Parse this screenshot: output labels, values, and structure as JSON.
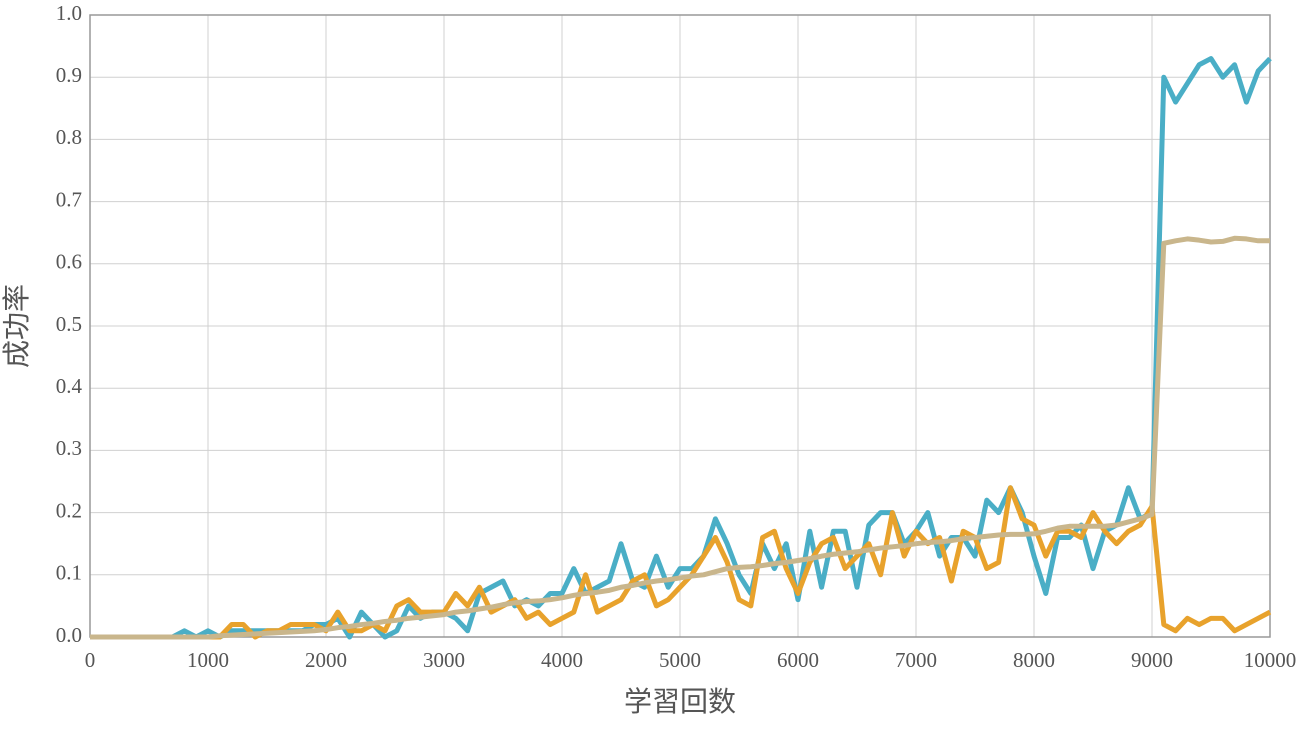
{
  "chart_data": {
    "type": "line",
    "x_label": "学習回数",
    "y_label": "成功率",
    "x": [
      0,
      100,
      200,
      300,
      400,
      500,
      600,
      700,
      800,
      900,
      1000,
      1100,
      1200,
      1300,
      1400,
      1500,
      1600,
      1700,
      1800,
      1900,
      2000,
      2100,
      2200,
      2300,
      2400,
      2500,
      2600,
      2700,
      2800,
      2900,
      3000,
      3100,
      3200,
      3300,
      3400,
      3500,
      3600,
      3700,
      3800,
      3900,
      4000,
      4100,
      4200,
      4300,
      4400,
      4500,
      4600,
      4700,
      4800,
      4900,
      5000,
      5100,
      5200,
      5300,
      5400,
      5500,
      5600,
      5700,
      5800,
      5900,
      6000,
      6100,
      6200,
      6300,
      6400,
      6500,
      6600,
      6700,
      6800,
      6900,
      7000,
      7100,
      7200,
      7300,
      7400,
      7500,
      7600,
      7700,
      7800,
      7900,
      8000,
      8100,
      8200,
      8300,
      8400,
      8500,
      8600,
      8700,
      8800,
      8900,
      9000,
      9100,
      9200,
      9300,
      9400,
      9500,
      9600,
      9700,
      9800,
      9900,
      10000
    ],
    "series": [
      {
        "color": "#4aaec6",
        "values": [
          0,
          0,
          0,
          0,
          0,
          0,
          0,
          0,
          0.01,
          0,
          0.01,
          0,
          0.01,
          0.01,
          0.01,
          0.01,
          0.01,
          0.01,
          0.01,
          0.02,
          0.02,
          0.03,
          0,
          0.04,
          0.02,
          0,
          0.01,
          0.05,
          0.03,
          0.04,
          0.04,
          0.03,
          0.01,
          0.07,
          0.08,
          0.09,
          0.05,
          0.06,
          0.05,
          0.07,
          0.07,
          0.11,
          0.07,
          0.08,
          0.09,
          0.15,
          0.09,
          0.08,
          0.13,
          0.08,
          0.11,
          0.11,
          0.13,
          0.19,
          0.15,
          0.1,
          0.07,
          0.15,
          0.11,
          0.15,
          0.06,
          0.17,
          0.08,
          0.17,
          0.17,
          0.08,
          0.18,
          0.2,
          0.2,
          0.15,
          0.17,
          0.2,
          0.13,
          0.16,
          0.16,
          0.13,
          0.22,
          0.2,
          0.24,
          0.2,
          0.13,
          0.07,
          0.16,
          0.16,
          0.18,
          0.11,
          0.17,
          0.18,
          0.24,
          0.19,
          0.2,
          0.9,
          0.86,
          0.89,
          0.92,
          0.93,
          0.9,
          0.92,
          0.86,
          0.91,
          0.93
        ]
      },
      {
        "color": "#e8a22c",
        "values": [
          0,
          0,
          0,
          0,
          0,
          0,
          0,
          0,
          0,
          0,
          0,
          0,
          0.02,
          0.02,
          0,
          0.01,
          0.01,
          0.02,
          0.02,
          0.02,
          0.01,
          0.04,
          0.01,
          0.01,
          0.02,
          0.01,
          0.05,
          0.06,
          0.04,
          0.04,
          0.04,
          0.07,
          0.05,
          0.08,
          0.04,
          0.05,
          0.06,
          0.03,
          0.04,
          0.02,
          0.03,
          0.04,
          0.1,
          0.04,
          0.05,
          0.06,
          0.09,
          0.1,
          0.05,
          0.06,
          0.08,
          0.1,
          0.13,
          0.16,
          0.12,
          0.06,
          0.05,
          0.16,
          0.17,
          0.11,
          0.07,
          0.12,
          0.15,
          0.16,
          0.11,
          0.13,
          0.15,
          0.1,
          0.2,
          0.13,
          0.17,
          0.15,
          0.16,
          0.09,
          0.17,
          0.16,
          0.11,
          0.12,
          0.24,
          0.19,
          0.18,
          0.13,
          0.17,
          0.17,
          0.16,
          0.2,
          0.17,
          0.15,
          0.17,
          0.18,
          0.21,
          0.02,
          0.01,
          0.03,
          0.02,
          0.03,
          0.03,
          0.01,
          0.02,
          0.03,
          0.04
        ]
      },
      {
        "color": "#c9b68c",
        "values": [
          0,
          0,
          0,
          0,
          0,
          0,
          0,
          0,
          0,
          0,
          0,
          0.002,
          0.003,
          0.004,
          0.005,
          0.006,
          0.007,
          0.008,
          0.009,
          0.01,
          0.012,
          0.015,
          0.017,
          0.02,
          0.022,
          0.025,
          0.027,
          0.03,
          0.032,
          0.034,
          0.036,
          0.04,
          0.042,
          0.045,
          0.048,
          0.052,
          0.055,
          0.057,
          0.058,
          0.06,
          0.063,
          0.067,
          0.07,
          0.072,
          0.075,
          0.08,
          0.083,
          0.087,
          0.09,
          0.092,
          0.095,
          0.098,
          0.1,
          0.105,
          0.11,
          0.112,
          0.113,
          0.115,
          0.118,
          0.12,
          0.123,
          0.126,
          0.13,
          0.133,
          0.135,
          0.137,
          0.14,
          0.143,
          0.145,
          0.147,
          0.15,
          0.152,
          0.153,
          0.155,
          0.158,
          0.16,
          0.162,
          0.164,
          0.165,
          0.165,
          0.166,
          0.17,
          0.175,
          0.178,
          0.178,
          0.178,
          0.178,
          0.18,
          0.185,
          0.19,
          0.197,
          0.633,
          0.637,
          0.64,
          0.638,
          0.635,
          0.636,
          0.641,
          0.64,
          0.637,
          0.637
        ]
      }
    ],
    "xlim": [
      0,
      10000
    ],
    "xticks": [
      0,
      1000,
      2000,
      3000,
      4000,
      5000,
      6000,
      7000,
      8000,
      9000,
      10000
    ],
    "ylim": [
      0,
      1
    ],
    "yticks": [
      {
        "value": 0,
        "label": "0.0"
      },
      0.1,
      0.2,
      0.3,
      0.4,
      0.5,
      0.6,
      0.7,
      0.8,
      0.9,
      {
        "value": 1,
        "label": "1.0"
      }
    ],
    "grid": true
  }
}
